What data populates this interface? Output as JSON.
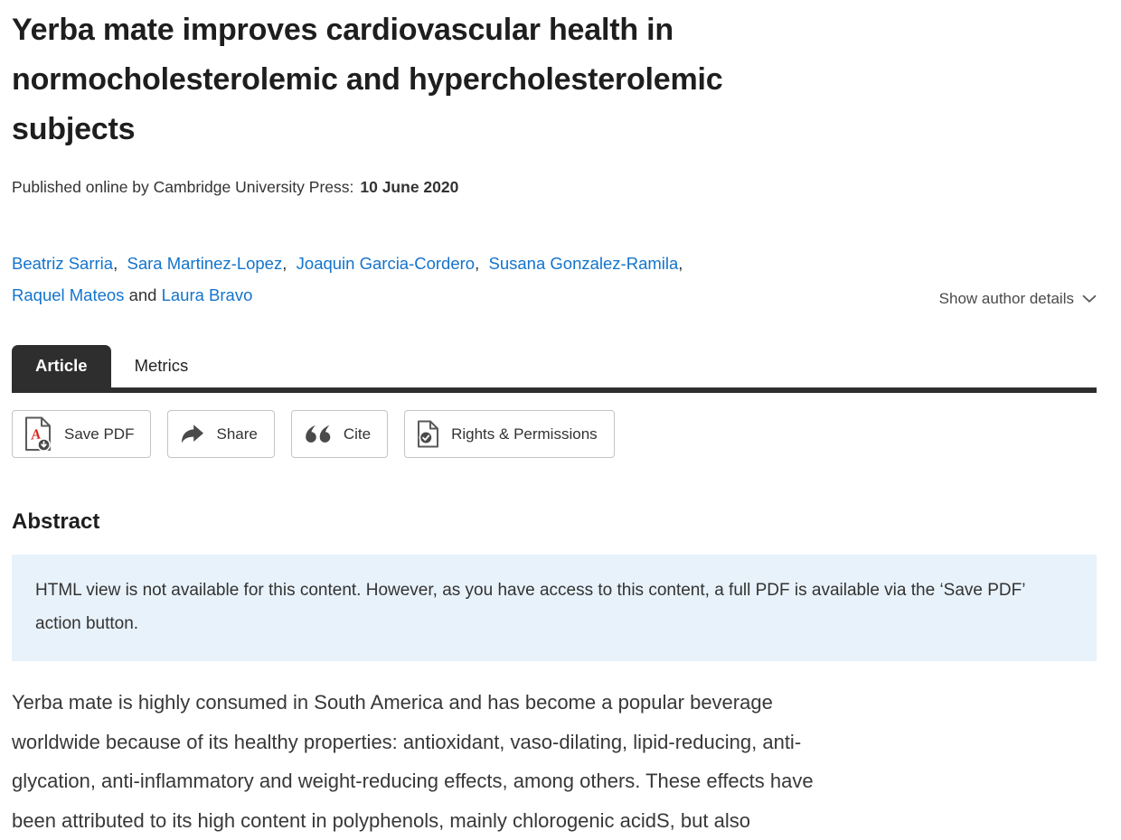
{
  "article": {
    "title": "Yerba mate improves cardiovascular health in normocholesterolemic and hypercholesterolemic subjects",
    "published_prefix": "Published online by Cambridge University Press:",
    "published_date": "10 June 2020"
  },
  "authors": {
    "names": [
      "Beatriz Sarria",
      "Sara Martinez-Lopez",
      "Joaquin Garcia-Cordero",
      "Susana Gonzalez-Ramila",
      "Raquel Mateos",
      "Laura Bravo"
    ],
    "and_label": "and",
    "show_details_label": "Show author details"
  },
  "tabs": {
    "article": "Article",
    "metrics": "Metrics"
  },
  "toolbar": {
    "save_pdf": "Save PDF",
    "share": "Share",
    "cite": "Cite",
    "rights": "Rights & Permissions"
  },
  "abstract": {
    "heading": "Abstract",
    "notice": "HTML view is not available for this content. However, as you have access to this content, a full PDF is available via the ‘Save PDF’ action button.",
    "body_lines": [
      "Yerba mate is highly consumed in South America and has become a popular beverage",
      "worldwide because of its healthy properties: antioxidant, vaso-dilating, lipid-reducing, anti-",
      "glycation, anti-inflammatory and weight-reducing effects, among others. These effects have",
      "been attributed to its high content in polyphenols, mainly chlorogenic acidS, but also"
    ]
  },
  "colors": {
    "link": "#1474cc",
    "tab_dark": "#2e2e2e",
    "notice_bg": "#e8f2fa",
    "pdf_red": "#d6281e",
    "icon_gray": "#4a4a4a"
  }
}
